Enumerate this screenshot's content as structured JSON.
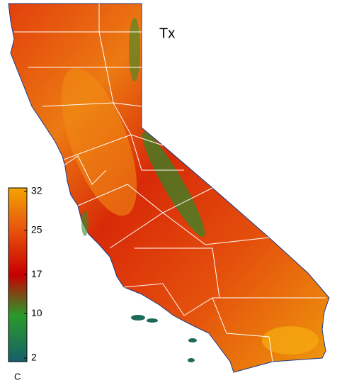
{
  "title": "Tx",
  "colorbar": {
    "range": [
      2,
      32
    ],
    "ticks": [
      32,
      25,
      17,
      10,
      2
    ],
    "unit": "C",
    "stops": [
      {
        "value": 2,
        "color": "#16606a"
      },
      {
        "value": 10,
        "color": "#2a9a2a"
      },
      {
        "value": 17,
        "color": "#c80000"
      },
      {
        "value": 25,
        "color": "#e8560e"
      },
      {
        "value": 32,
        "color": "#f2a400"
      }
    ]
  }
}
